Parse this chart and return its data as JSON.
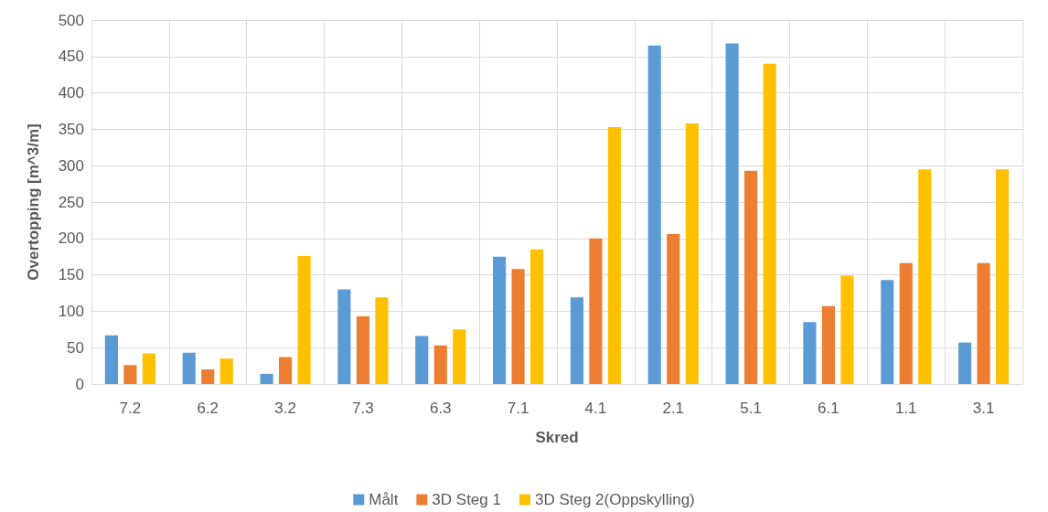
{
  "chart_data": {
    "type": "bar",
    "xlabel": "Skred",
    "ylabel": "Overtopping [m^3/m]",
    "categories": [
      "7.2",
      "6.2",
      "3.2",
      "7.3",
      "6.3",
      "7.1",
      "4.1",
      "2.1",
      "5.1",
      "6.1",
      "1.1",
      "3.1"
    ],
    "series": [
      {
        "name": "Målt",
        "color": "#5b9bd5",
        "values": [
          67,
          43,
          14,
          130,
          66,
          175,
          119,
          465,
          468,
          85,
          143,
          57
        ]
      },
      {
        "name": "3D Steg 1",
        "color": "#ed7d31",
        "values": [
          26,
          20,
          37,
          93,
          53,
          158,
          200,
          206,
          293,
          107,
          166,
          166
        ]
      },
      {
        "name": "3D Steg 2(Oppskylling)",
        "color": "#ffc000",
        "values": [
          42,
          35,
          176,
          119,
          75,
          185,
          353,
          358,
          440,
          149,
          295,
          295
        ]
      }
    ],
    "ylim": [
      0,
      500
    ],
    "yticks": [
      0,
      50,
      100,
      150,
      200,
      250,
      300,
      350,
      400,
      450,
      500
    ],
    "grid": true,
    "legend": "bottom"
  }
}
